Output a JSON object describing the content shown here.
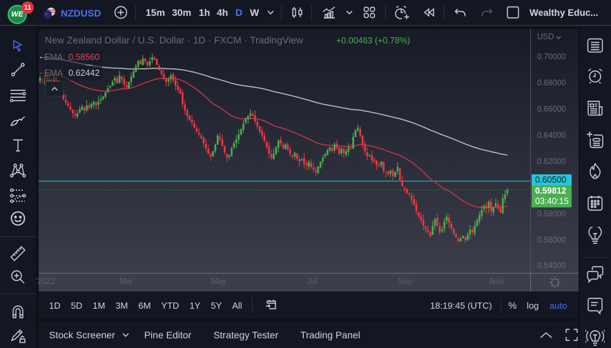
{
  "topbar": {
    "logo_text": "WE",
    "notification_count": "11",
    "symbol": "NZDUSD",
    "intervals": [
      "15m",
      "30m",
      "1h",
      "4h",
      "D",
      "W"
    ],
    "active_interval": "D",
    "layout_name": "Wealthy Educ..."
  },
  "chart": {
    "title": "New Zealand Dollar / U.S. Dollar · 1D · FXCM · TradingView",
    "change": "+0.00463 (+0.78%)",
    "indicators": [
      {
        "name": "EMA",
        "value": "0.58560",
        "color": "#e0445a"
      },
      {
        "name": "EMA",
        "value": "0.62442",
        "color": "#c8cad0"
      }
    ],
    "currency": "USD",
    "price_ticks": [
      "0.70000",
      "0.68000",
      "0.66000",
      "0.64000",
      "0.62000",
      "0.58000",
      "0.56000",
      "0.54000"
    ],
    "horizontal_line": {
      "price": "0.60500",
      "color": "#26c6da"
    },
    "last_price": {
      "price": "0.59812",
      "countdown": "03:40:15",
      "color": "#4caf50"
    },
    "time_labels": [
      "2022",
      "Mar",
      "May",
      "Jul",
      "Sep",
      "Nov"
    ],
    "colors": {
      "up": "#4caf50",
      "down": "#f23645",
      "ema_fast": "#c2334a",
      "ema_slow": "#b8bac2",
      "hline": "#26c6da"
    }
  },
  "chart_data": {
    "type": "candlestick",
    "title": "New Zealand Dollar / U.S. Dollar · 1D · FXCM",
    "ylabel": "USD",
    "ylim": [
      0.535,
      0.708
    ],
    "x_ticks": [
      "2022",
      "Mar",
      "May",
      "Jul",
      "Sep",
      "Nov"
    ],
    "close_path": [
      0.684,
      0.682,
      0.686,
      0.68,
      0.683,
      0.679,
      0.685,
      0.681,
      0.676,
      0.672,
      0.668,
      0.665,
      0.663,
      0.66,
      0.657,
      0.655,
      0.657,
      0.66,
      0.662,
      0.659,
      0.663,
      0.661,
      0.664,
      0.666,
      0.663,
      0.666,
      0.668,
      0.67,
      0.673,
      0.676,
      0.678,
      0.681,
      0.684,
      0.68,
      0.686,
      0.683,
      0.679,
      0.677,
      0.681,
      0.685,
      0.689,
      0.693,
      0.697,
      0.695,
      0.699,
      0.697,
      0.694,
      0.697,
      0.7,
      0.698,
      0.694,
      0.69,
      0.687,
      0.684,
      0.681,
      0.683,
      0.686,
      0.682,
      0.678,
      0.675,
      0.672,
      0.664,
      0.659,
      0.655,
      0.652,
      0.65,
      0.646,
      0.643,
      0.641,
      0.638,
      0.634,
      0.63,
      0.626,
      0.624,
      0.628,
      0.633,
      0.64,
      0.637,
      0.632,
      0.627,
      0.623,
      0.625,
      0.63,
      0.634,
      0.637,
      0.641,
      0.645,
      0.649,
      0.653,
      0.655,
      0.657,
      0.655,
      0.651,
      0.647,
      0.643,
      0.64,
      0.636,
      0.631,
      0.626,
      0.623,
      0.626,
      0.631,
      0.636,
      0.634,
      0.63,
      0.633,
      0.629,
      0.626,
      0.624,
      0.627,
      0.622,
      0.62,
      0.622,
      0.618,
      0.617,
      0.62,
      0.616,
      0.614,
      0.612,
      0.616,
      0.62,
      0.623,
      0.626,
      0.629,
      0.631,
      0.628,
      0.633,
      0.63,
      0.626,
      0.63,
      0.626,
      0.628,
      0.631,
      0.63,
      0.639,
      0.644,
      0.646,
      0.64,
      0.633,
      0.628,
      0.624,
      0.625,
      0.621,
      0.62,
      0.617,
      0.617,
      0.62,
      0.613,
      0.612,
      0.61,
      0.613,
      0.609,
      0.612,
      0.616,
      0.606,
      0.601,
      0.599,
      0.596,
      0.595,
      0.591,
      0.587,
      0.582,
      0.578,
      0.575,
      0.571,
      0.568,
      0.566,
      0.563,
      0.571,
      0.576,
      0.571,
      0.566,
      0.568,
      0.574,
      0.578,
      0.573,
      0.569,
      0.565,
      0.562,
      0.559,
      0.561,
      0.563,
      0.56,
      0.564,
      0.568,
      0.566,
      0.571,
      0.575,
      0.579,
      0.583,
      0.586,
      0.584,
      0.589,
      0.582,
      0.585,
      0.588,
      0.584,
      0.581,
      0.592,
      0.595,
      0.598
    ],
    "ema_fast_final": 0.5856,
    "ema_slow_final": 0.62442,
    "horizontal_line": 0.605,
    "last_close": 0.59812,
    "change": 0.00463,
    "change_pct": 0.78
  },
  "range_bar": {
    "ranges": [
      "1D",
      "5D",
      "1M",
      "3M",
      "6M",
      "YTD",
      "1Y",
      "5Y",
      "All"
    ],
    "clock": "18:19:45 (UTC)",
    "percent": "%",
    "log": "log",
    "auto": "auto"
  },
  "bottom_panel": {
    "tabs": [
      "Stock Screener",
      "Pine Editor",
      "Strategy Tester",
      "Trading Panel"
    ]
  }
}
